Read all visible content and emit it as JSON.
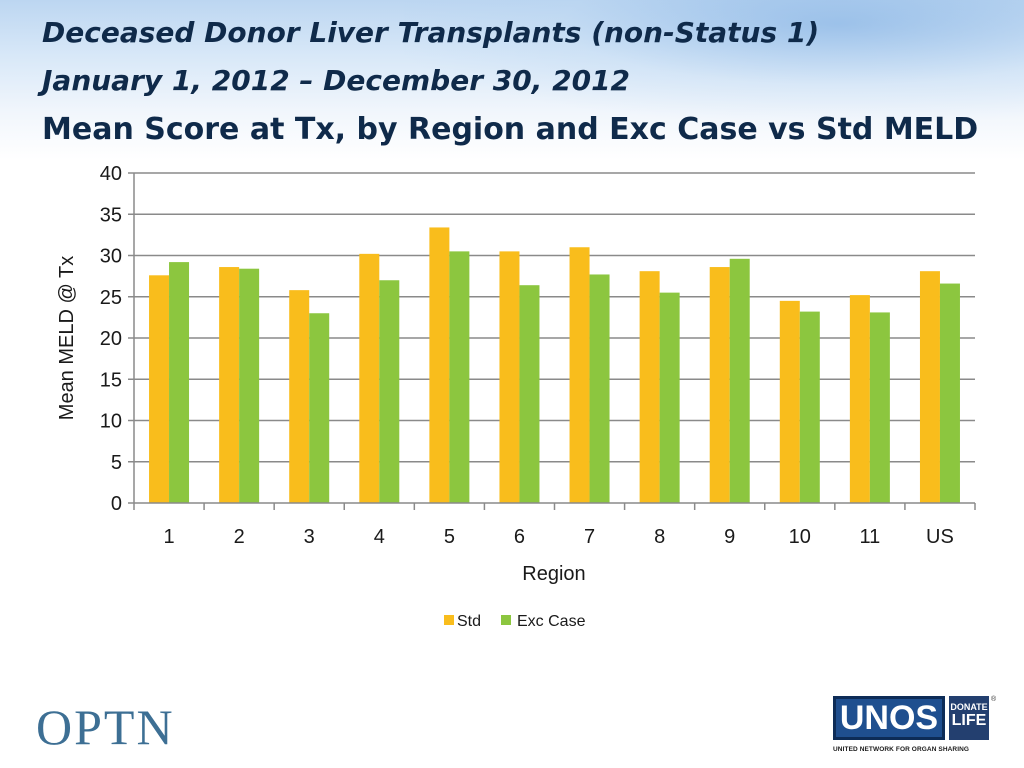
{
  "slide": {
    "title_line1": "Deceased Donor Liver Transplants (non-Status 1)",
    "title_line2": "January 1, 2012 – December 30, 2012",
    "title_line3": "Mean Score at Tx, by Region and Exc Case vs Std MELD"
  },
  "chart_data": {
    "type": "bar",
    "categories": [
      "1",
      "2",
      "3",
      "4",
      "5",
      "6",
      "7",
      "8",
      "9",
      "10",
      "11",
      "US"
    ],
    "series": [
      {
        "name": "Std",
        "color": "#f9bd1c",
        "values": [
          27.6,
          28.6,
          25.8,
          30.2,
          33.4,
          30.5,
          31.0,
          28.1,
          28.6,
          24.5,
          25.2,
          28.1
        ]
      },
      {
        "name": "Exc Case",
        "color": "#8cc63f",
        "values": [
          29.2,
          28.4,
          23.0,
          27.0,
          30.5,
          26.4,
          27.7,
          25.5,
          29.6,
          23.2,
          23.1,
          26.6
        ]
      }
    ],
    "xlabel": "Region",
    "ylabel": "Mean MELD @ Tx",
    "ylim": [
      0,
      40
    ],
    "yticks": [
      0,
      5,
      10,
      15,
      20,
      25,
      30,
      35,
      40
    ],
    "grid": true,
    "legend": "bottom"
  },
  "footer": {
    "left_logo": "OPTN",
    "unos_logo": "UNOS",
    "donate_top": "DONATE",
    "donate_bottom": "LIFE",
    "registered": "®",
    "unos_tagline": "UNITED NETWORK FOR ORGAN SHARING"
  }
}
